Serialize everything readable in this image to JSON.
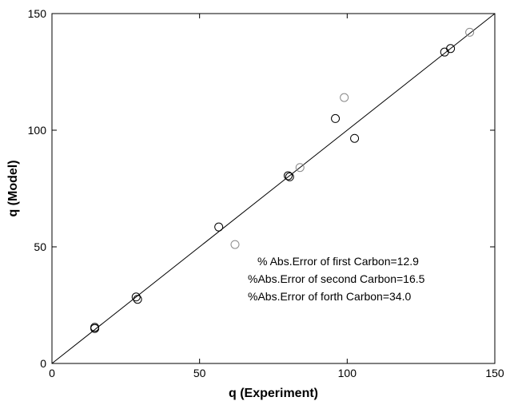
{
  "chart_data": {
    "type": "scatter",
    "title": "",
    "xlabel": "q (Experiment)",
    "ylabel": "q (Model)",
    "xlim": [
      0,
      150
    ],
    "ylim": [
      0,
      150
    ],
    "xticks": [
      0,
      50,
      100,
      150
    ],
    "yticks": [
      0,
      50,
      100,
      150
    ],
    "grid": false,
    "reference_line": {
      "x": [
        0,
        150
      ],
      "y": [
        0,
        150
      ]
    },
    "series": [
      {
        "color": "#000000",
        "x": [
          14.5,
          14.5,
          28.5,
          29,
          56.5,
          80,
          80.5,
          96,
          102.5,
          133,
          135
        ],
        "y": [
          15,
          15.5,
          28.5,
          27.5,
          58.5,
          80.5,
          80,
          105,
          96.5,
          133.5,
          135
        ]
      },
      {
        "color": "#888888",
        "x": [
          62,
          84,
          99,
          141.5
        ],
        "y": [
          51,
          84,
          114,
          142
        ]
      }
    ],
    "annotations": [
      "% Abs.Error of first Carbon=12.9",
      "%Abs.Error of second Carbon=16.5",
      "%Abs.Error of forth Carbon=34.0"
    ]
  }
}
